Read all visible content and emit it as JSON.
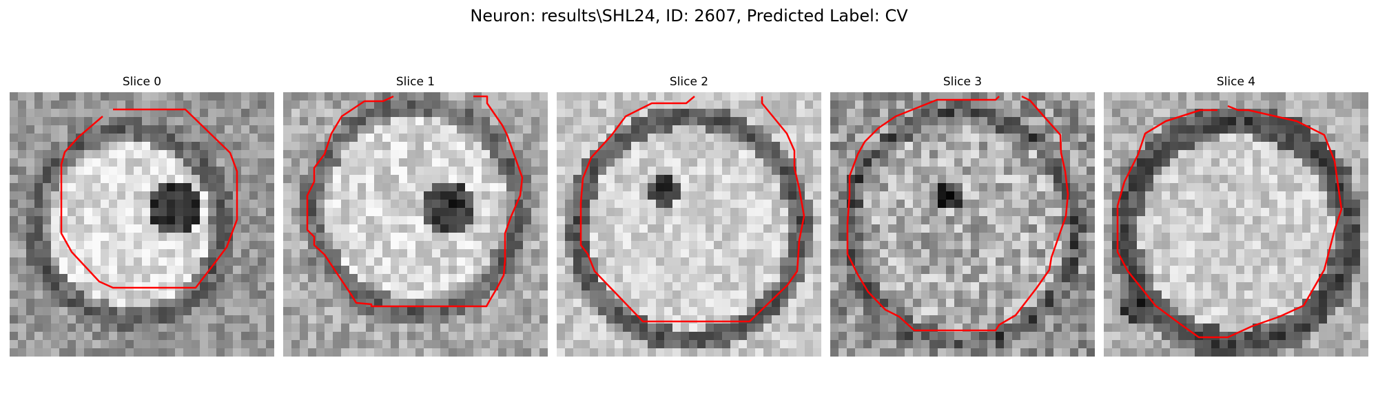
{
  "figure": {
    "title": "Neuron: results\\SHL24, ID: 2607, Predicted Label: CV"
  },
  "panels": [
    {
      "title": "Slice 0"
    },
    {
      "title": "Slice 1"
    },
    {
      "title": "Slice 2"
    },
    {
      "title": "Slice 3"
    },
    {
      "title": "Slice 4"
    }
  ],
  "colors": {
    "contour": "#ff0000",
    "background": "#ffffff"
  }
}
